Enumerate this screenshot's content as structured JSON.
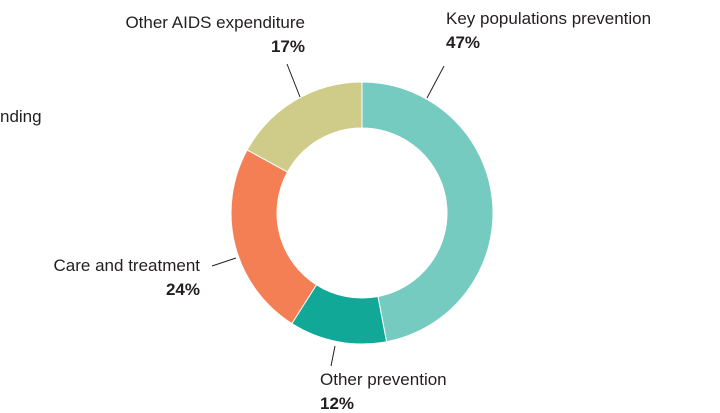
{
  "chart_data": {
    "type": "pie",
    "donut": true,
    "slices": [
      {
        "label": "Key populations prevention",
        "value": 47,
        "value_label": "47%",
        "color": "#76cbc1"
      },
      {
        "label": "Other prevention",
        "value": 12,
        "value_label": "12%",
        "color": "#12a898"
      },
      {
        "label": "Care and treatment",
        "value": 24,
        "value_label": "24%",
        "color": "#f47f55"
      },
      {
        "label": "Other AIDS expenditure",
        "value": 17,
        "value_label": "17%",
        "color": "#cfcb88"
      }
    ],
    "cropped_label_fragment": "nding"
  }
}
